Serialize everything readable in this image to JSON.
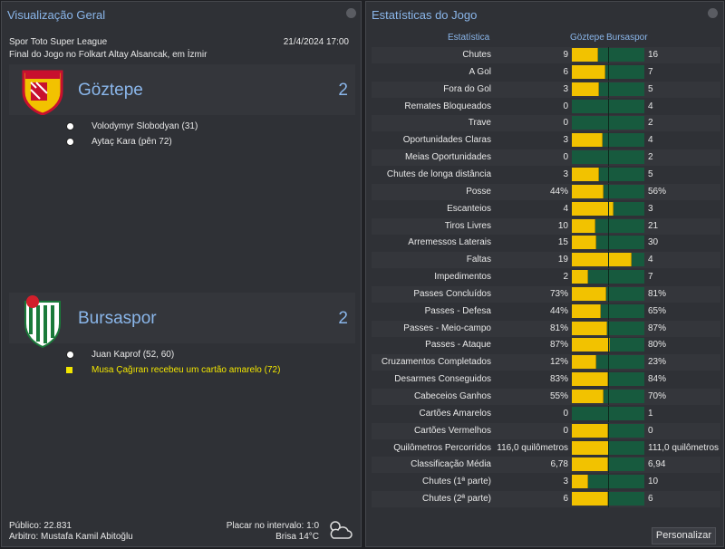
{
  "overview": {
    "title": "Visualização Geral",
    "competition": "Spor Toto Super League",
    "datetime": "21/4/2024 17:00",
    "venue": "Final do Jogo no Folkart Altay Alsancak, em İzmir",
    "teams": [
      {
        "name": "Göztepe",
        "score": 2,
        "events": [
          {
            "kind": "goal",
            "text": "Volodymyr Slobodyan (31)"
          },
          {
            "kind": "goal",
            "text": "Aytaç Kara (pên 72)"
          }
        ]
      },
      {
        "name": "Bursaspor",
        "score": 2,
        "events": [
          {
            "kind": "goal",
            "text": "Juan Kaprof (52, 60)"
          },
          {
            "kind": "yellow",
            "text": "Musa Çağıran recebeu um cartão amarelo (72)"
          }
        ]
      }
    ],
    "attendance": "Público: 22.831",
    "referee": "Arbitro: Mustafa Kamil Abitoğlu",
    "halftime": "Placar no intervalo: 1:0",
    "weather": "Brisa 14°C"
  },
  "stats": {
    "title": "Estatísticas do Jogo",
    "header": {
      "stat": "Estatística",
      "home": "Göztepe",
      "away": "Bursaspor"
    },
    "rows": [
      {
        "label": "Chutes",
        "home": 9,
        "away": 16
      },
      {
        "label": "A Gol",
        "home": 6,
        "away": 7
      },
      {
        "label": "Fora do Gol",
        "home": 3,
        "away": 5
      },
      {
        "label": "Remates Bloqueados",
        "home": 0,
        "away": 4
      },
      {
        "label": "Trave",
        "home": 0,
        "away": 2
      },
      {
        "label": "Oportunidades Claras",
        "home": 3,
        "away": 4
      },
      {
        "label": "Meias Oportunidades",
        "home": 0,
        "away": 2
      },
      {
        "label": "Chutes de longa distância",
        "home": 3,
        "away": 5
      },
      {
        "label": "Posse",
        "home": {
          "value": 44,
          "label": "44%"
        },
        "away": {
          "value": 56,
          "label": "56%"
        }
      },
      {
        "label": "Escanteios",
        "home": 4,
        "away": 3
      },
      {
        "label": "Tiros Livres",
        "home": 10,
        "away": 21
      },
      {
        "label": "Arremessos Laterais",
        "home": 15,
        "away": 30
      },
      {
        "label": "Faltas",
        "home": 19,
        "away": 4
      },
      {
        "label": "Impedimentos",
        "home": 2,
        "away": 7
      },
      {
        "label": "Passes Concluídos",
        "home": {
          "value": 73,
          "label": "73%"
        },
        "away": {
          "value": 81,
          "label": "81%"
        }
      },
      {
        "label": "Passes - Defesa",
        "home": {
          "value": 44,
          "label": "44%"
        },
        "away": {
          "value": 65,
          "label": "65%"
        }
      },
      {
        "label": "Passes - Meio-campo",
        "home": {
          "value": 81,
          "label": "81%"
        },
        "away": {
          "value": 87,
          "label": "87%"
        }
      },
      {
        "label": "Passes - Ataque",
        "home": {
          "value": 87,
          "label": "87%"
        },
        "away": {
          "value": 80,
          "label": "80%"
        }
      },
      {
        "label": "Cruzamentos Completados",
        "home": {
          "value": 12,
          "label": "12%"
        },
        "away": {
          "value": 23,
          "label": "23%"
        }
      },
      {
        "label": "Desarmes Conseguidos",
        "home": {
          "value": 83,
          "label": "83%"
        },
        "away": {
          "value": 84,
          "label": "84%"
        }
      },
      {
        "label": "Cabeceios Ganhos",
        "home": {
          "value": 55,
          "label": "55%"
        },
        "away": {
          "value": 70,
          "label": "70%"
        }
      },
      {
        "label": "Cartões Amarelos",
        "home": 0,
        "away": 1
      },
      {
        "label": "Cartões Vermelhos",
        "home": 0,
        "away": 0
      },
      {
        "label": "Quilômetros Percorridos",
        "home": {
          "value": 116.0,
          "label": "116,0 quilômetros"
        },
        "away": {
          "value": 111.0,
          "label": "111,0 quilômetros"
        }
      },
      {
        "label": "Classificação Média",
        "home": {
          "value": 6.78,
          "label": "6,78"
        },
        "away": {
          "value": 6.94,
          "label": "6,94"
        }
      },
      {
        "label": "Chutes (1ª parte)",
        "home": 3,
        "away": 10
      },
      {
        "label": "Chutes (2ª parte)",
        "home": 6,
        "away": 6
      }
    ]
  },
  "button": "Personalizar"
}
